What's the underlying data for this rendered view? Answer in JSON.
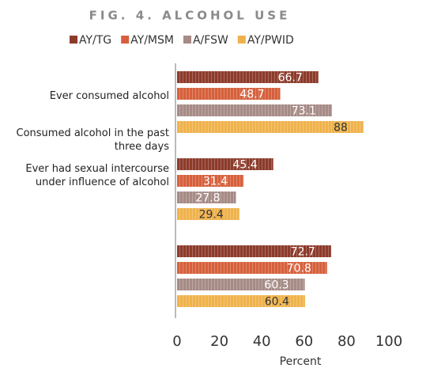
{
  "chart_data": {
    "type": "bar",
    "orientation": "horizontal",
    "title": "FIG. 4. ALCOHOL USE",
    "x_label": "Percent",
    "categories": [
      "Ever consumed alcohol",
      "Consumed alcohol in the past three days",
      "Ever had sexual intercourse under influence of alcohol"
    ],
    "series": [
      {
        "name": "AY/TG",
        "color": "#8c3b2b",
        "values": [
          66.7,
          45.4,
          72.7
        ]
      },
      {
        "name": "AY/MSM",
        "color": "#d6603c",
        "values": [
          48.7,
          31.4,
          70.8
        ]
      },
      {
        "name": "A/FSW",
        "color": "#a68b86",
        "values": [
          73.1,
          27.8,
          60.3
        ]
      },
      {
        "name": "AY/PWID",
        "color": "#efb24b",
        "values": [
          88,
          29.4,
          60.4
        ]
      }
    ],
    "xlim": [
      0,
      100
    ],
    "xticks": [
      0,
      20,
      40,
      60,
      80,
      100
    ],
    "grid": false
  }
}
